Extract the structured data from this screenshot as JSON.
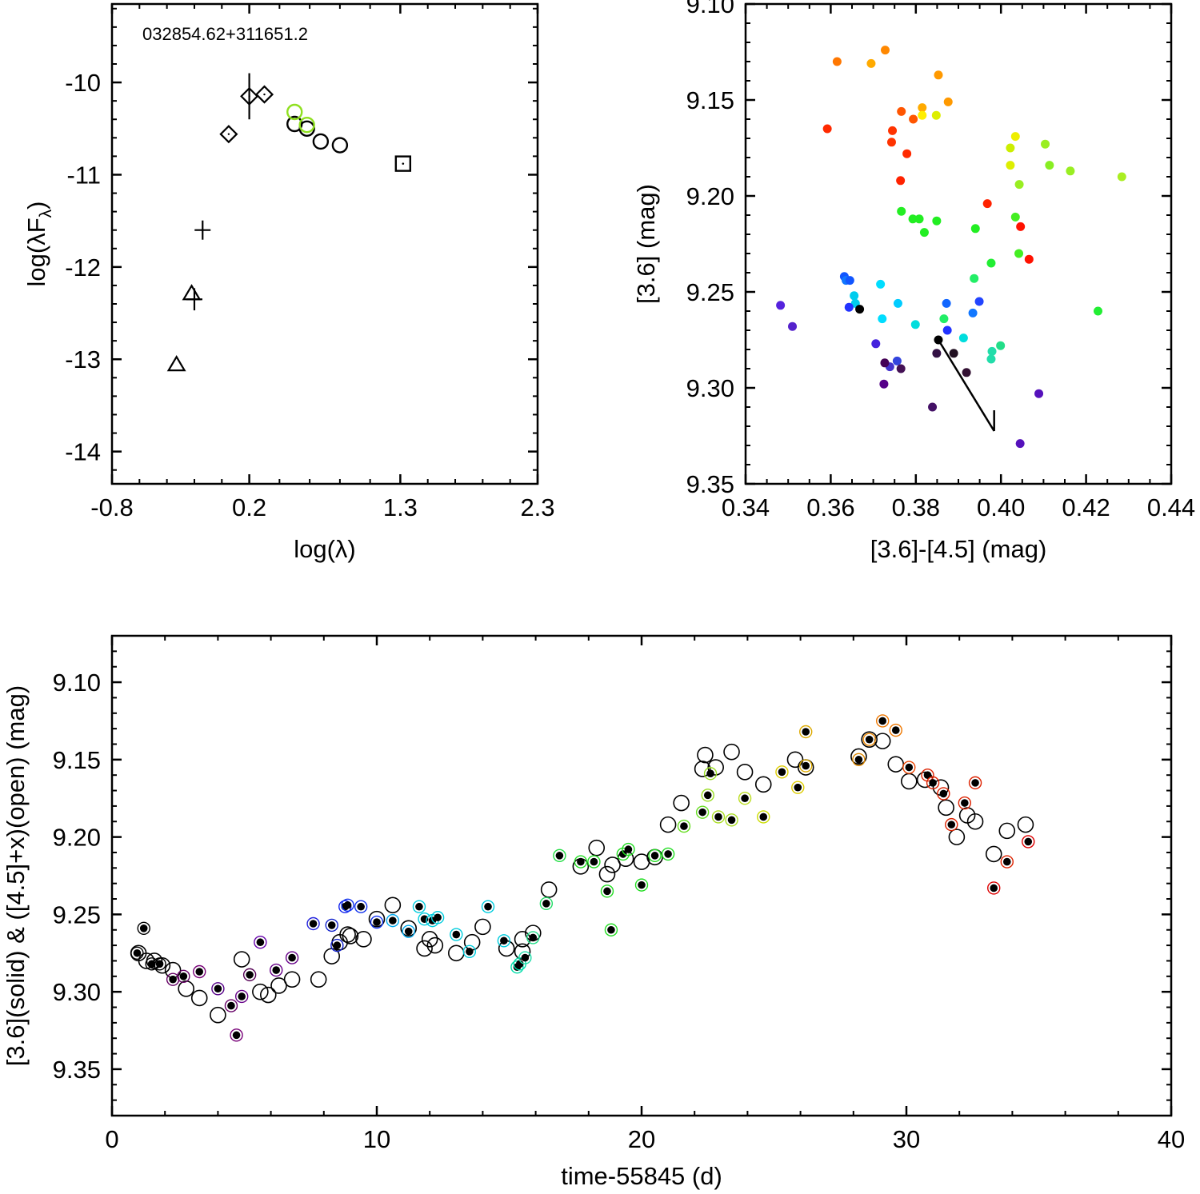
{
  "chart_data": [
    {
      "id": "sed",
      "type": "scatter",
      "title": "032854.62+311651.2",
      "xlabel": "log(λ)",
      "ylabel_main": "log(λF",
      "ylabel_sub": "λ",
      "ylabel_close": ")",
      "xlim": [
        -0.8,
        2.3
      ],
      "ylim": [
        -14.35,
        -9.15
      ],
      "x_ticks": [
        -0.8,
        0.2,
        1.3,
        2.3
      ],
      "x_tick_labels": [
        "-0.8",
        "0.2",
        "1.3",
        "2.3"
      ],
      "y_ticks": [
        -10,
        -11,
        -12,
        -13,
        -14
      ],
      "y_tick_labels": [
        "-10",
        "-11",
        "-12",
        "-13",
        "-14"
      ],
      "series": [
        {
          "name": "triangles",
          "marker": "triangle",
          "points": [
            [
              -0.33,
              -13.06
            ],
            [
              -0.22,
              -12.29
            ]
          ]
        },
        {
          "name": "crosses",
          "marker": "plus",
          "points": [
            [
              -0.14,
              -11.6,
              0.1
            ],
            [
              -0.2,
              -12.35,
              0.12
            ]
          ]
        },
        {
          "name": "diamonds",
          "marker": "diamond",
          "points": [
            [
              0.05,
              -10.56,
              0
            ],
            [
              0.2,
              -10.15,
              0.25
            ],
            [
              0.31,
              -10.13,
              0
            ]
          ]
        },
        {
          "name": "circles",
          "marker": "circle",
          "points": [
            [
              0.53,
              -10.45
            ],
            [
              0.62,
              -10.5
            ],
            [
              0.72,
              -10.64
            ],
            [
              0.86,
              -10.68
            ]
          ]
        },
        {
          "name": "highlighted circles",
          "marker": "circle",
          "color": "#8fe020",
          "points": [
            [
              0.53,
              -10.32
            ],
            [
              0.62,
              -10.46
            ]
          ]
        },
        {
          "name": "box",
          "marker": "square",
          "points": [
            [
              1.32,
              -10.88
            ]
          ]
        }
      ]
    },
    {
      "id": "cmd",
      "type": "scatter",
      "xlabel": "[3.6]-[4.5] (mag)",
      "ylabel": "[3.6] (mag)",
      "xlim": [
        0.34,
        0.44
      ],
      "ylim": [
        9.35,
        9.1
      ],
      "x_ticks": [
        0.34,
        0.36,
        0.38,
        0.4,
        0.42,
        0.44
      ],
      "x_tick_labels": [
        "0.34",
        "0.36",
        "0.38",
        "0.40",
        "0.42",
        "0.44"
      ],
      "y_ticks": [
        9.1,
        9.15,
        9.2,
        9.25,
        9.3,
        9.35
      ],
      "y_tick_labels": [
        "9.10",
        "9.15",
        "9.20",
        "9.25",
        "9.30",
        "9.35"
      ],
      "reddening_vector": [
        [
          0.3853,
          9.275
        ],
        [
          0.3984,
          9.3225
        ]
      ],
      "points": [
        [
          0.3615,
          9.13,
          "#ff7700"
        ],
        [
          0.3695,
          9.131,
          "#ffaa00"
        ],
        [
          0.3728,
          9.124,
          "#ff8800"
        ],
        [
          0.3853,
          9.137,
          "#ff9900"
        ],
        [
          0.3876,
          9.151,
          "#ff9900"
        ],
        [
          0.3592,
          9.165,
          "#ff2a00"
        ],
        [
          0.3766,
          9.156,
          "#ff5500"
        ],
        [
          0.3815,
          9.154,
          "#ffaa00"
        ],
        [
          0.3815,
          9.158,
          "#ffee00"
        ],
        [
          0.3848,
          9.158,
          "#ddee00"
        ],
        [
          0.3794,
          9.16,
          "#ff5500"
        ],
        [
          0.3745,
          9.166,
          "#ff3300"
        ],
        [
          0.3743,
          9.172,
          "#ff3300"
        ],
        [
          0.3779,
          9.178,
          "#ff2a00"
        ],
        [
          0.3764,
          9.192,
          "#ff2200"
        ],
        [
          0.4034,
          9.169,
          "#eeee00"
        ],
        [
          0.4022,
          9.175,
          "#ccee00"
        ],
        [
          0.4022,
          9.184,
          "#ddee00"
        ],
        [
          0.4104,
          9.173,
          "#99ee22"
        ],
        [
          0.4114,
          9.184,
          "#88ee22"
        ],
        [
          0.4163,
          9.187,
          "#99ee22"
        ],
        [
          0.4284,
          9.19,
          "#aaee22"
        ],
        [
          0.4043,
          9.194,
          "#99ee22"
        ],
        [
          0.3968,
          9.204,
          "#ff2200"
        ],
        [
          0.4034,
          9.211,
          "#44ee22"
        ],
        [
          0.4046,
          9.216,
          "#ff1100"
        ],
        [
          0.3766,
          9.208,
          "#22ee22"
        ],
        [
          0.3793,
          9.212,
          "#22ee22"
        ],
        [
          0.3808,
          9.212,
          "#22ee22"
        ],
        [
          0.3849,
          9.213,
          "#22ee22"
        ],
        [
          0.382,
          9.219,
          "#22ee22"
        ],
        [
          0.394,
          9.217,
          "#22ee22"
        ],
        [
          0.3977,
          9.235,
          "#22ee33"
        ],
        [
          0.4042,
          9.23,
          "#44ee22"
        ],
        [
          0.4066,
          9.233,
          "#ff1100"
        ],
        [
          0.3937,
          9.243,
          "#22ee66"
        ],
        [
          0.4228,
          9.26,
          "#22ee33"
        ],
        [
          0.3632,
          9.242,
          "#1155ff"
        ],
        [
          0.3636,
          9.244,
          "#1177ff"
        ],
        [
          0.3645,
          9.244,
          "#1155ff"
        ],
        [
          0.3717,
          9.246,
          "#00ddff"
        ],
        [
          0.3655,
          9.252,
          "#00ccee"
        ],
        [
          0.3658,
          9.256,
          "#00ccee"
        ],
        [
          0.3643,
          9.258,
          "#2233ff"
        ],
        [
          0.3758,
          9.256,
          "#00ccff"
        ],
        [
          0.3872,
          9.256,
          "#1166ff"
        ],
        [
          0.3949,
          9.255,
          "#2244ff"
        ],
        [
          0.3668,
          9.259,
          "#000000"
        ],
        [
          0.3721,
          9.264,
          "#00ddff"
        ],
        [
          0.3866,
          9.264,
          "#22ee66"
        ],
        [
          0.3934,
          9.261,
          "#1177ff"
        ],
        [
          0.3799,
          9.267,
          "#00dddd"
        ],
        [
          0.3874,
          9.27,
          "#2233ff"
        ],
        [
          0.3912,
          9.274,
          "#00dddd"
        ],
        [
          0.3482,
          9.257,
          "#5522dd"
        ],
        [
          0.351,
          9.268,
          "#5522cc"
        ],
        [
          0.3706,
          9.277,
          "#4422dd"
        ],
        [
          0.3853,
          9.275,
          "#000000"
        ],
        [
          0.3979,
          9.281,
          "#22ddaa"
        ],
        [
          0.3977,
          9.285,
          "#22ddaa"
        ],
        [
          0.3999,
          9.278,
          "#22dd88"
        ],
        [
          0.3849,
          9.282,
          "#331144"
        ],
        [
          0.3889,
          9.282,
          "#221122"
        ],
        [
          0.3739,
          9.289,
          "#4433cc"
        ],
        [
          0.3756,
          9.286,
          "#3344dd"
        ],
        [
          0.3765,
          9.29,
          "#441155"
        ],
        [
          0.3727,
          9.287,
          "#440055"
        ],
        [
          0.3919,
          9.292,
          "#331133"
        ],
        [
          0.3725,
          9.298,
          "#550088"
        ],
        [
          0.4089,
          9.303,
          "#5511bb"
        ],
        [
          0.3839,
          9.31,
          "#441166"
        ],
        [
          0.4045,
          9.329,
          "#5511bb"
        ]
      ]
    },
    {
      "id": "lc",
      "type": "scatter",
      "xlabel": "time-55845 (d)",
      "ylabel": "[3.6](solid) & ([4.5]+x)(open) (mag)",
      "xlim": [
        0,
        40
      ],
      "ylim": [
        9.38,
        9.07
      ],
      "x_ticks": [
        0,
        10,
        20,
        30,
        40
      ],
      "x_tick_labels": [
        "0",
        "10",
        "20",
        "30",
        "40"
      ],
      "y_ticks": [
        9.1,
        9.15,
        9.2,
        9.25,
        9.3,
        9.35
      ],
      "y_tick_labels": [
        "9.10",
        "9.15",
        "9.20",
        "9.25",
        "9.30",
        "9.35"
      ],
      "open_points": [
        [
          1.0,
          9.275
        ],
        [
          1.3,
          9.28
        ],
        [
          1.6,
          9.28
        ],
        [
          1.9,
          9.283
        ],
        [
          2.3,
          9.286
        ],
        [
          2.8,
          9.298
        ],
        [
          3.3,
          9.304
        ],
        [
          4.0,
          9.315
        ],
        [
          4.9,
          9.279
        ],
        [
          5.6,
          9.3
        ],
        [
          5.9,
          9.302
        ],
        [
          6.3,
          9.296
        ],
        [
          6.8,
          9.292
        ],
        [
          7.8,
          9.292
        ],
        [
          8.3,
          9.277
        ],
        [
          8.6,
          9.268
        ],
        [
          8.9,
          9.263
        ],
        [
          9.0,
          9.264
        ],
        [
          9.5,
          9.266
        ],
        [
          10.0,
          9.253
        ],
        [
          10.6,
          9.244
        ],
        [
          11.2,
          9.259
        ],
        [
          11.8,
          9.272
        ],
        [
          12.0,
          9.266
        ],
        [
          12.2,
          9.27
        ],
        [
          13.0,
          9.275
        ],
        [
          13.6,
          9.268
        ],
        [
          14.0,
          9.258
        ],
        [
          14.9,
          9.272
        ],
        [
          15.5,
          9.274
        ],
        [
          15.5,
          9.266
        ],
        [
          15.9,
          9.262
        ],
        [
          16.5,
          9.234
        ],
        [
          17.7,
          9.219
        ],
        [
          18.3,
          9.207
        ],
        [
          18.7,
          9.224
        ],
        [
          18.9,
          9.218
        ],
        [
          19.4,
          9.214
        ],
        [
          20.0,
          9.216
        ],
        [
          20.5,
          9.213
        ],
        [
          21.0,
          9.192
        ],
        [
          21.5,
          9.178
        ],
        [
          22.3,
          9.156
        ],
        [
          22.4,
          9.147
        ],
        [
          22.8,
          9.155
        ],
        [
          23.4,
          9.145
        ],
        [
          23.9,
          9.158
        ],
        [
          24.6,
          9.166
        ],
        [
          25.8,
          9.15
        ],
        [
          26.2,
          9.155
        ],
        [
          28.2,
          9.148
        ],
        [
          28.6,
          9.137
        ],
        [
          29.1,
          9.138
        ],
        [
          29.6,
          9.153
        ],
        [
          30.1,
          9.164
        ],
        [
          30.7,
          9.163
        ],
        [
          31.3,
          9.168
        ],
        [
          31.5,
          9.181
        ],
        [
          31.9,
          9.2
        ],
        [
          32.3,
          9.186
        ],
        [
          32.6,
          9.19
        ],
        [
          33.3,
          9.211
        ],
        [
          33.8,
          9.196
        ],
        [
          34.5,
          9.192
        ]
      ],
      "solid_points": [
        [
          0.95,
          9.275,
          "#000000"
        ],
        [
          1.2,
          9.259,
          "#000000"
        ],
        [
          1.5,
          9.282,
          "#000000"
        ],
        [
          1.8,
          9.282,
          "#000000"
        ],
        [
          2.3,
          9.292,
          "#660066"
        ],
        [
          2.7,
          9.29,
          "#660066"
        ],
        [
          3.3,
          9.287,
          "#770077"
        ],
        [
          4.0,
          9.298,
          "#550088"
        ],
        [
          4.5,
          9.309,
          "#660066"
        ],
        [
          4.7,
          9.328,
          "#770077"
        ],
        [
          4.9,
          9.303,
          "#660088"
        ],
        [
          5.2,
          9.289,
          "#550055"
        ],
        [
          5.6,
          9.268,
          "#6600aa"
        ],
        [
          6.2,
          9.286,
          "#660088"
        ],
        [
          6.8,
          9.278,
          "#660088"
        ],
        [
          7.6,
          9.256,
          "#2222dd"
        ],
        [
          8.3,
          9.257,
          "#1122cc"
        ],
        [
          8.5,
          9.27,
          "#1122cc"
        ],
        [
          8.8,
          9.245,
          "#1122ee"
        ],
        [
          8.9,
          9.244,
          "#1133ee"
        ],
        [
          9.4,
          9.245,
          "#1133ee"
        ],
        [
          10.0,
          9.255,
          "#1133ee"
        ],
        [
          10.6,
          9.254,
          "#00aaee"
        ],
        [
          11.2,
          9.261,
          "#00aaee"
        ],
        [
          11.6,
          9.245,
          "#00ccdd"
        ],
        [
          11.8,
          9.253,
          "#00ccdd"
        ],
        [
          12.1,
          9.254,
          "#00ccdd"
        ],
        [
          12.3,
          9.252,
          "#00ccdd"
        ],
        [
          13.0,
          9.263,
          "#00ccdd"
        ],
        [
          13.5,
          9.274,
          "#00ccdd"
        ],
        [
          14.2,
          9.245,
          "#00ccdd"
        ],
        [
          14.8,
          9.267,
          "#00ccdd"
        ],
        [
          15.3,
          9.284,
          "#00ddaa"
        ],
        [
          15.4,
          9.282,
          "#00ddaa"
        ],
        [
          15.6,
          9.278,
          "#22ddaa"
        ],
        [
          15.9,
          9.265,
          "#22dd88"
        ],
        [
          16.4,
          9.243,
          "#22dd66"
        ],
        [
          16.9,
          9.212,
          "#22dd44"
        ],
        [
          17.7,
          9.216,
          "#22dd22"
        ],
        [
          18.2,
          9.216,
          "#22dd22"
        ],
        [
          18.7,
          9.235,
          "#22dd22"
        ],
        [
          18.85,
          9.26,
          "#22dd22"
        ],
        [
          19.3,
          9.211,
          "#22dd22"
        ],
        [
          19.5,
          9.208,
          "#22dd22"
        ],
        [
          20.0,
          9.231,
          "#22dd22"
        ],
        [
          20.5,
          9.212,
          "#22dd22"
        ],
        [
          21.0,
          9.211,
          "#22dd22"
        ],
        [
          21.6,
          9.193,
          "#66dd22"
        ],
        [
          22.3,
          9.184,
          "#66dd22"
        ],
        [
          22.5,
          9.173,
          "#99dd22"
        ],
        [
          22.6,
          9.159,
          "#99dd22"
        ],
        [
          22.9,
          9.187,
          "#aadd22"
        ],
        [
          23.4,
          9.189,
          "#aadd22"
        ],
        [
          23.9,
          9.175,
          "#bbdd22"
        ],
        [
          24.6,
          9.187,
          "#ccdd00"
        ],
        [
          25.3,
          9.158,
          "#ddcc00"
        ],
        [
          25.9,
          9.168,
          "#ddcc00"
        ],
        [
          26.2,
          9.132,
          "#ddaa00"
        ],
        [
          26.2,
          9.154,
          "#ddaa00"
        ],
        [
          28.2,
          9.15,
          "#dd8800"
        ],
        [
          28.6,
          9.137,
          "#ee8800"
        ],
        [
          29.1,
          9.125,
          "#ee7700"
        ],
        [
          29.6,
          9.131,
          "#ee7700"
        ],
        [
          30.1,
          9.155,
          "#ee4400"
        ],
        [
          30.8,
          9.16,
          "#dd2200"
        ],
        [
          31.0,
          9.165,
          "#dd2200"
        ],
        [
          31.4,
          9.172,
          "#dd2200"
        ],
        [
          31.7,
          9.192,
          "#dd2200"
        ],
        [
          32.2,
          9.178,
          "#dd2200"
        ],
        [
          32.6,
          9.165,
          "#dd2200"
        ],
        [
          33.3,
          9.233,
          "#dd0000"
        ],
        [
          33.8,
          9.216,
          "#dd2200"
        ],
        [
          34.6,
          9.203,
          "#dd0000"
        ]
      ]
    }
  ]
}
